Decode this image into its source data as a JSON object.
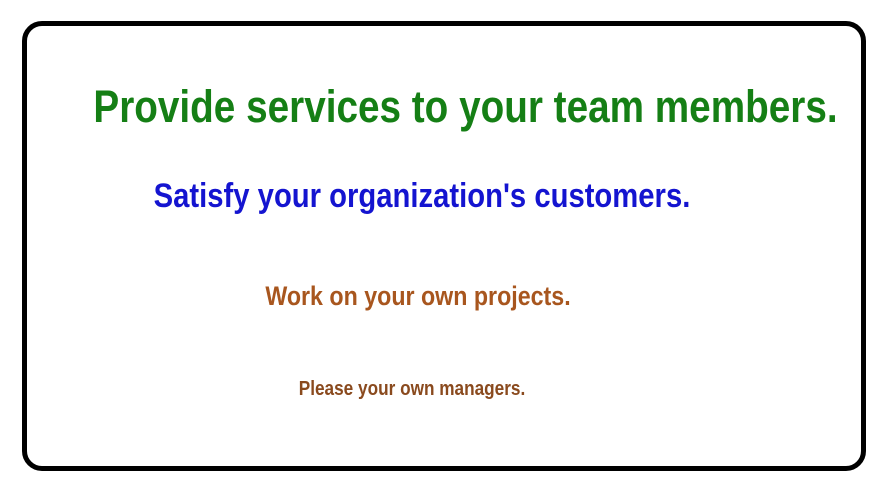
{
  "statements": {
    "line1": "Provide services to your team members.",
    "line2": "Satisfy your organization's customers.",
    "line3": "Work on your own projects.",
    "line4": "Please your own managers."
  },
  "colors": {
    "line1": "#157f15",
    "line2": "#1414d0",
    "line3": "#a8561e",
    "line4": "#8a4a1e",
    "border": "#000000"
  }
}
